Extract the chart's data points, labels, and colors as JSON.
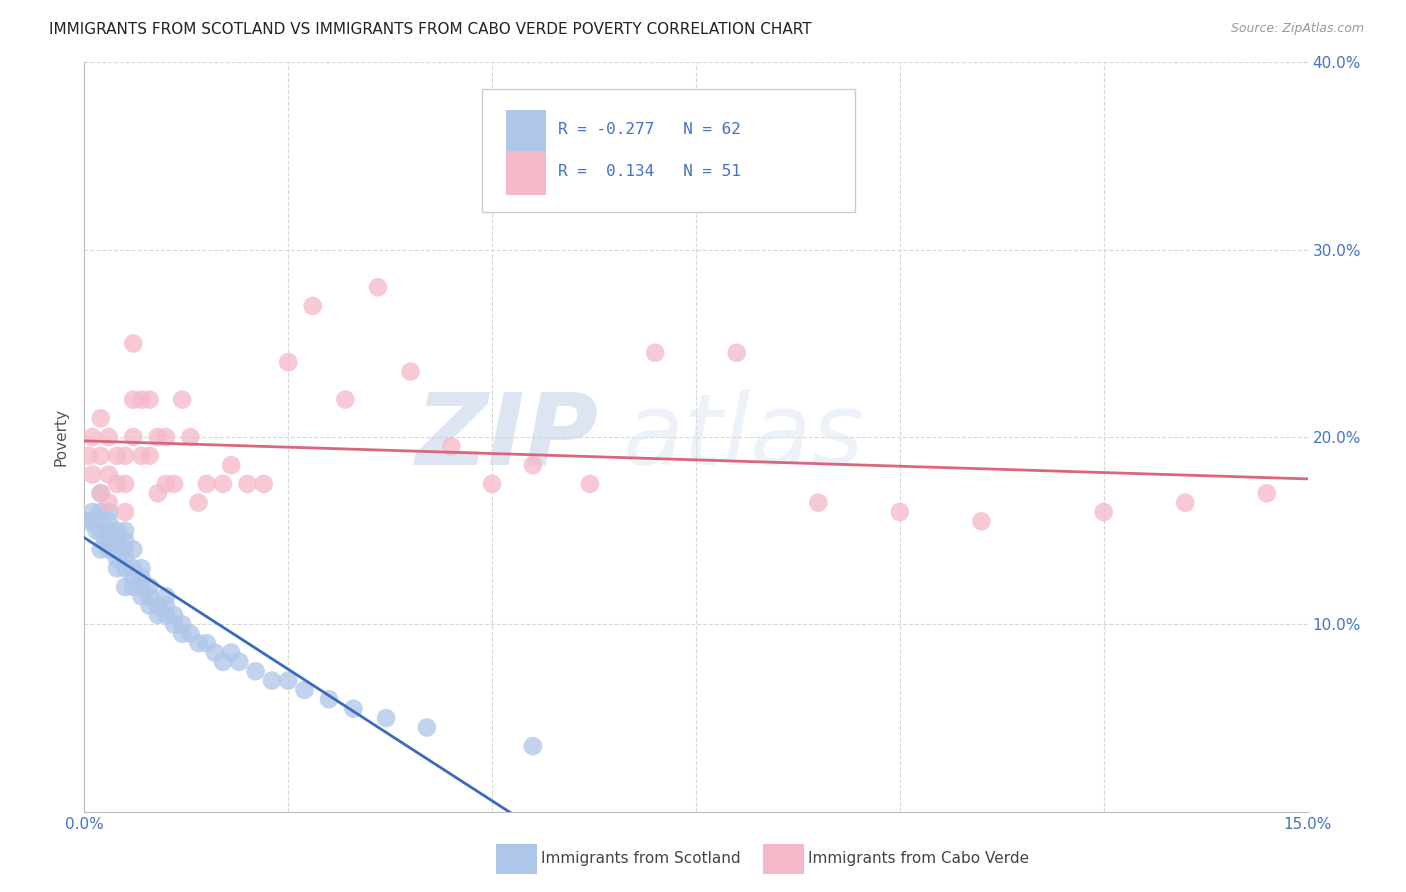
{
  "title": "IMMIGRANTS FROM SCOTLAND VS IMMIGRANTS FROM CABO VERDE POVERTY CORRELATION CHART",
  "source": "Source: ZipAtlas.com",
  "ylabel": "Poverty",
  "xlim": [
    0,
    0.15
  ],
  "ylim": [
    0,
    0.4
  ],
  "scotland_color": "#aec6e8",
  "caboverde_color": "#f5b8c8",
  "scotland_line_color": "#3a6abf",
  "caboverde_line_color": "#d9667a",
  "legend_scotland_R": "-0.277",
  "legend_scotland_N": "62",
  "legend_caboverde_R": "0.134",
  "legend_caboverde_N": "51",
  "background_color": "#ffffff",
  "grid_color": "#d8d8d8",
  "title_color": "#222222",
  "axis_color": "#4472c4",
  "watermark_zip": "ZIP",
  "watermark_atlas": "atlas",
  "scotland_x": [
    0.0005,
    0.001,
    0.001,
    0.0015,
    0.002,
    0.002,
    0.002,
    0.002,
    0.0025,
    0.003,
    0.003,
    0.003,
    0.003,
    0.003,
    0.0035,
    0.004,
    0.004,
    0.004,
    0.004,
    0.004,
    0.005,
    0.005,
    0.005,
    0.005,
    0.005,
    0.005,
    0.006,
    0.006,
    0.006,
    0.006,
    0.007,
    0.007,
    0.007,
    0.007,
    0.008,
    0.008,
    0.008,
    0.009,
    0.009,
    0.01,
    0.01,
    0.01,
    0.011,
    0.011,
    0.012,
    0.012,
    0.013,
    0.014,
    0.015,
    0.016,
    0.017,
    0.018,
    0.019,
    0.021,
    0.023,
    0.025,
    0.027,
    0.03,
    0.033,
    0.037,
    0.042,
    0.055
  ],
  "scotland_y": [
    0.155,
    0.155,
    0.16,
    0.15,
    0.14,
    0.15,
    0.16,
    0.17,
    0.145,
    0.14,
    0.145,
    0.15,
    0.155,
    0.16,
    0.14,
    0.13,
    0.135,
    0.14,
    0.145,
    0.15,
    0.12,
    0.13,
    0.135,
    0.14,
    0.145,
    0.15,
    0.12,
    0.125,
    0.13,
    0.14,
    0.115,
    0.12,
    0.125,
    0.13,
    0.11,
    0.115,
    0.12,
    0.105,
    0.11,
    0.105,
    0.11,
    0.115,
    0.1,
    0.105,
    0.095,
    0.1,
    0.095,
    0.09,
    0.09,
    0.085,
    0.08,
    0.085,
    0.08,
    0.075,
    0.07,
    0.07,
    0.065,
    0.06,
    0.055,
    0.05,
    0.045,
    0.035
  ],
  "caboverde_x": [
    0.0005,
    0.001,
    0.001,
    0.002,
    0.002,
    0.002,
    0.003,
    0.003,
    0.003,
    0.004,
    0.004,
    0.005,
    0.005,
    0.005,
    0.006,
    0.006,
    0.006,
    0.007,
    0.007,
    0.008,
    0.008,
    0.009,
    0.009,
    0.01,
    0.01,
    0.011,
    0.012,
    0.013,
    0.014,
    0.015,
    0.017,
    0.018,
    0.02,
    0.022,
    0.025,
    0.028,
    0.032,
    0.036,
    0.04,
    0.045,
    0.05,
    0.055,
    0.062,
    0.07,
    0.08,
    0.09,
    0.1,
    0.11,
    0.125,
    0.135,
    0.145
  ],
  "caboverde_y": [
    0.19,
    0.18,
    0.2,
    0.17,
    0.19,
    0.21,
    0.165,
    0.18,
    0.2,
    0.175,
    0.19,
    0.16,
    0.175,
    0.19,
    0.2,
    0.22,
    0.25,
    0.19,
    0.22,
    0.19,
    0.22,
    0.17,
    0.2,
    0.175,
    0.2,
    0.175,
    0.22,
    0.2,
    0.165,
    0.175,
    0.175,
    0.185,
    0.175,
    0.175,
    0.24,
    0.27,
    0.22,
    0.28,
    0.235,
    0.195,
    0.175,
    0.185,
    0.175,
    0.245,
    0.245,
    0.165,
    0.16,
    0.155,
    0.16,
    0.165,
    0.17
  ]
}
